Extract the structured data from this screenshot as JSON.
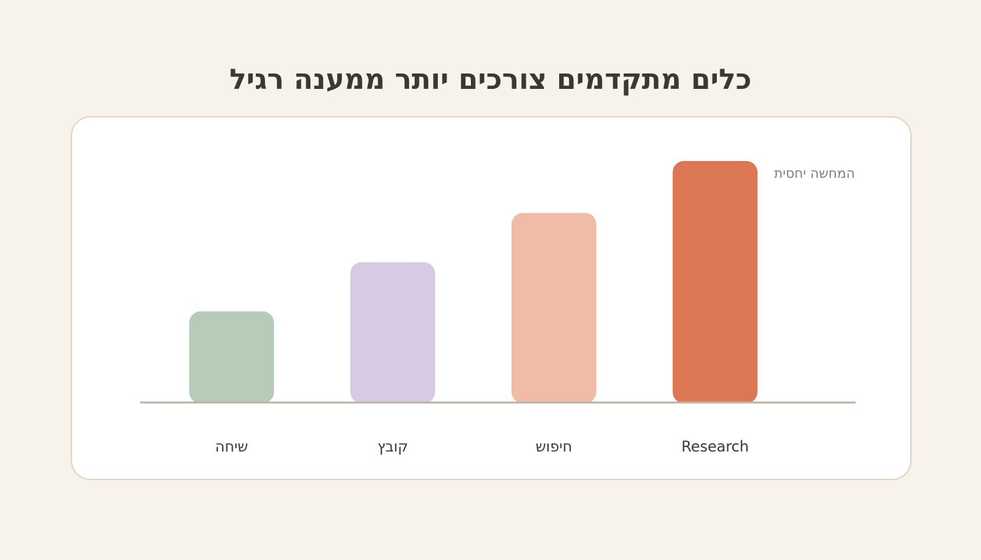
{
  "title": "כלים מתקדמים צורכים יותר ממענה רגיל",
  "chart_data": {
    "type": "bar",
    "title": "כלים מתקדמים צורכים יותר ממענה רגיל",
    "categories": [
      "שיחה",
      "קובץ",
      "חיפוש",
      "Research"
    ],
    "values": [
      1,
      1.54,
      2.08,
      2.65
    ],
    "colors": [
      "#b8cbb8",
      "#d8cae3",
      "#f0bca8",
      "#db7853"
    ],
    "annotation": "המחשה יחסית",
    "axis_color": "#bdb5aa",
    "grid": false,
    "legend": "none",
    "xlabel": "",
    "ylabel": "",
    "ylim": [
      0,
      2.65
    ]
  }
}
